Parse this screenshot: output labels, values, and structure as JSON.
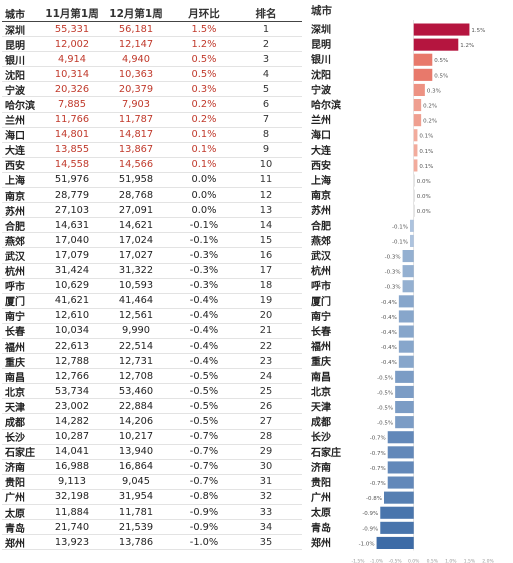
{
  "table": {
    "headers": {
      "city": "城市",
      "nov": "11月第1周",
      "dec": "12月第1周",
      "mom": "月环比",
      "rank": "排名"
    },
    "rows": [
      {
        "city": "深圳",
        "nov": "55,331",
        "dec": "56,181",
        "mom": "1.5%",
        "rank": "1"
      },
      {
        "city": "昆明",
        "nov": "12,002",
        "dec": "12,147",
        "mom": "1.2%",
        "rank": "2"
      },
      {
        "city": "银川",
        "nov": "4,914",
        "dec": "4,940",
        "mom": "0.5%",
        "rank": "3"
      },
      {
        "city": "沈阳",
        "nov": "10,314",
        "dec": "10,363",
        "mom": "0.5%",
        "rank": "4"
      },
      {
        "city": "宁波",
        "nov": "20,326",
        "dec": "20,379",
        "mom": "0.3%",
        "rank": "5"
      },
      {
        "city": "哈尔滨",
        "nov": "7,885",
        "dec": "7,903",
        "mom": "0.2%",
        "rank": "6"
      },
      {
        "city": "兰州",
        "nov": "11,766",
        "dec": "11,787",
        "mom": "0.2%",
        "rank": "7"
      },
      {
        "city": "海口",
        "nov": "14,801",
        "dec": "14,817",
        "mom": "0.1%",
        "rank": "8"
      },
      {
        "city": "大连",
        "nov": "13,855",
        "dec": "13,867",
        "mom": "0.1%",
        "rank": "9"
      },
      {
        "city": "西安",
        "nov": "14,558",
        "dec": "14,566",
        "mom": "0.1%",
        "rank": "10"
      },
      {
        "city": "上海",
        "nov": "51,976",
        "dec": "51,958",
        "mom": "0.0%",
        "rank": "11"
      },
      {
        "city": "南京",
        "nov": "28,779",
        "dec": "28,768",
        "mom": "0.0%",
        "rank": "12"
      },
      {
        "city": "苏州",
        "nov": "27,103",
        "dec": "27,091",
        "mom": "0.0%",
        "rank": "13"
      },
      {
        "city": "合肥",
        "nov": "14,631",
        "dec": "14,621",
        "mom": "-0.1%",
        "rank": "14"
      },
      {
        "city": "燕郊",
        "nov": "17,040",
        "dec": "17,024",
        "mom": "-0.1%",
        "rank": "15"
      },
      {
        "city": "武汉",
        "nov": "17,079",
        "dec": "17,027",
        "mom": "-0.3%",
        "rank": "16"
      },
      {
        "city": "杭州",
        "nov": "31,424",
        "dec": "31,322",
        "mom": "-0.3%",
        "rank": "17"
      },
      {
        "city": "呼市",
        "nov": "10,629",
        "dec": "10,593",
        "mom": "-0.3%",
        "rank": "18"
      },
      {
        "city": "厦门",
        "nov": "41,621",
        "dec": "41,464",
        "mom": "-0.4%",
        "rank": "19"
      },
      {
        "city": "南宁",
        "nov": "12,610",
        "dec": "12,561",
        "mom": "-0.4%",
        "rank": "20"
      },
      {
        "city": "长春",
        "nov": "10,034",
        "dec": "9,990",
        "mom": "-0.4%",
        "rank": "21"
      },
      {
        "city": "福州",
        "nov": "22,613",
        "dec": "22,514",
        "mom": "-0.4%",
        "rank": "22"
      },
      {
        "city": "重庆",
        "nov": "12,788",
        "dec": "12,731",
        "mom": "-0.4%",
        "rank": "23"
      },
      {
        "city": "南昌",
        "nov": "12,766",
        "dec": "12,708",
        "mom": "-0.5%",
        "rank": "24"
      },
      {
        "city": "北京",
        "nov": "53,734",
        "dec": "53,460",
        "mom": "-0.5%",
        "rank": "25"
      },
      {
        "city": "天津",
        "nov": "23,002",
        "dec": "22,884",
        "mom": "-0.5%",
        "rank": "26"
      },
      {
        "city": "成都",
        "nov": "14,282",
        "dec": "14,206",
        "mom": "-0.5%",
        "rank": "27"
      },
      {
        "city": "长沙",
        "nov": "10,287",
        "dec": "10,217",
        "mom": "-0.7%",
        "rank": "28"
      },
      {
        "city": "石家庄",
        "nov": "14,041",
        "dec": "13,940",
        "mom": "-0.7%",
        "rank": "29"
      },
      {
        "city": "济南",
        "nov": "16,988",
        "dec": "16,864",
        "mom": "-0.7%",
        "rank": "30"
      },
      {
        "city": "贵阳",
        "nov": "9,113",
        "dec": "9,045",
        "mom": "-0.7%",
        "rank": "31"
      },
      {
        "city": "广州",
        "nov": "32,198",
        "dec": "31,954",
        "mom": "-0.8%",
        "rank": "32"
      },
      {
        "city": "太原",
        "nov": "11,884",
        "dec": "11,781",
        "mom": "-0.9%",
        "rank": "33"
      },
      {
        "city": "青岛",
        "nov": "21,740",
        "dec": "21,539",
        "mom": "-0.9%",
        "rank": "34"
      },
      {
        "city": "郑州",
        "nov": "13,923",
        "dec": "13,786",
        "mom": "-1.0%",
        "rank": "35"
      }
    ]
  },
  "chart_data": {
    "type": "bar",
    "orientation": "horizontal",
    "title": "",
    "category_header": "城市",
    "categories": [
      "深圳",
      "昆明",
      "银川",
      "沈阳",
      "宁波",
      "哈尔滨",
      "兰州",
      "海口",
      "大连",
      "西安",
      "上海",
      "南京",
      "苏州",
      "合肥",
      "燕郊",
      "武汉",
      "杭州",
      "呼市",
      "厦门",
      "南宁",
      "长春",
      "福州",
      "重庆",
      "南昌",
      "北京",
      "天津",
      "成都",
      "长沙",
      "石家庄",
      "济南",
      "贵阳",
      "广州",
      "太原",
      "青岛",
      "郑州"
    ],
    "values": [
      1.5,
      1.2,
      0.5,
      0.5,
      0.3,
      0.2,
      0.2,
      0.1,
      0.1,
      0.1,
      0.0,
      0.0,
      0.0,
      -0.1,
      -0.1,
      -0.3,
      -0.3,
      -0.3,
      -0.4,
      -0.4,
      -0.4,
      -0.4,
      -0.4,
      -0.5,
      -0.5,
      -0.5,
      -0.5,
      -0.7,
      -0.7,
      -0.7,
      -0.7,
      -0.8,
      -0.9,
      -0.9,
      -1.0
    ],
    "data_labels": [
      "1.5%",
      "1.2%",
      "0.5%",
      "0.5%",
      "0.3%",
      "0.2%",
      "0.2%",
      "0.1%",
      "0.1%",
      "0.1%",
      "0.0%",
      "0.0%",
      "0.0%",
      "-0.1%",
      "-0.1%",
      "-0.3%",
      "-0.3%",
      "-0.3%",
      "-0.4%",
      "-0.4%",
      "-0.4%",
      "-0.4%",
      "-0.4%",
      "-0.5%",
      "-0.5%",
      "-0.5%",
      "-0.5%",
      "-0.7%",
      "-0.7%",
      "-0.7%",
      "-0.7%",
      "-0.8%",
      "-0.9%",
      "-0.9%",
      "-1.0%"
    ],
    "xlim": [
      -1.5,
      2.0
    ],
    "x_ticks": [
      "-1.5%",
      "-1.0%",
      "-0.5%",
      "0.0%",
      "0.5%",
      "1.0%",
      "1.5%",
      "2.0%"
    ],
    "grid": false,
    "legend": "none",
    "colors": {
      "positive_high": "#b5153f",
      "positive_mid": "#e8796b",
      "positive_low": "#f4b8a8",
      "zero": "#d8d8d8",
      "negative_low": "#b9cde4",
      "negative_high": "#3d6ba6"
    }
  }
}
